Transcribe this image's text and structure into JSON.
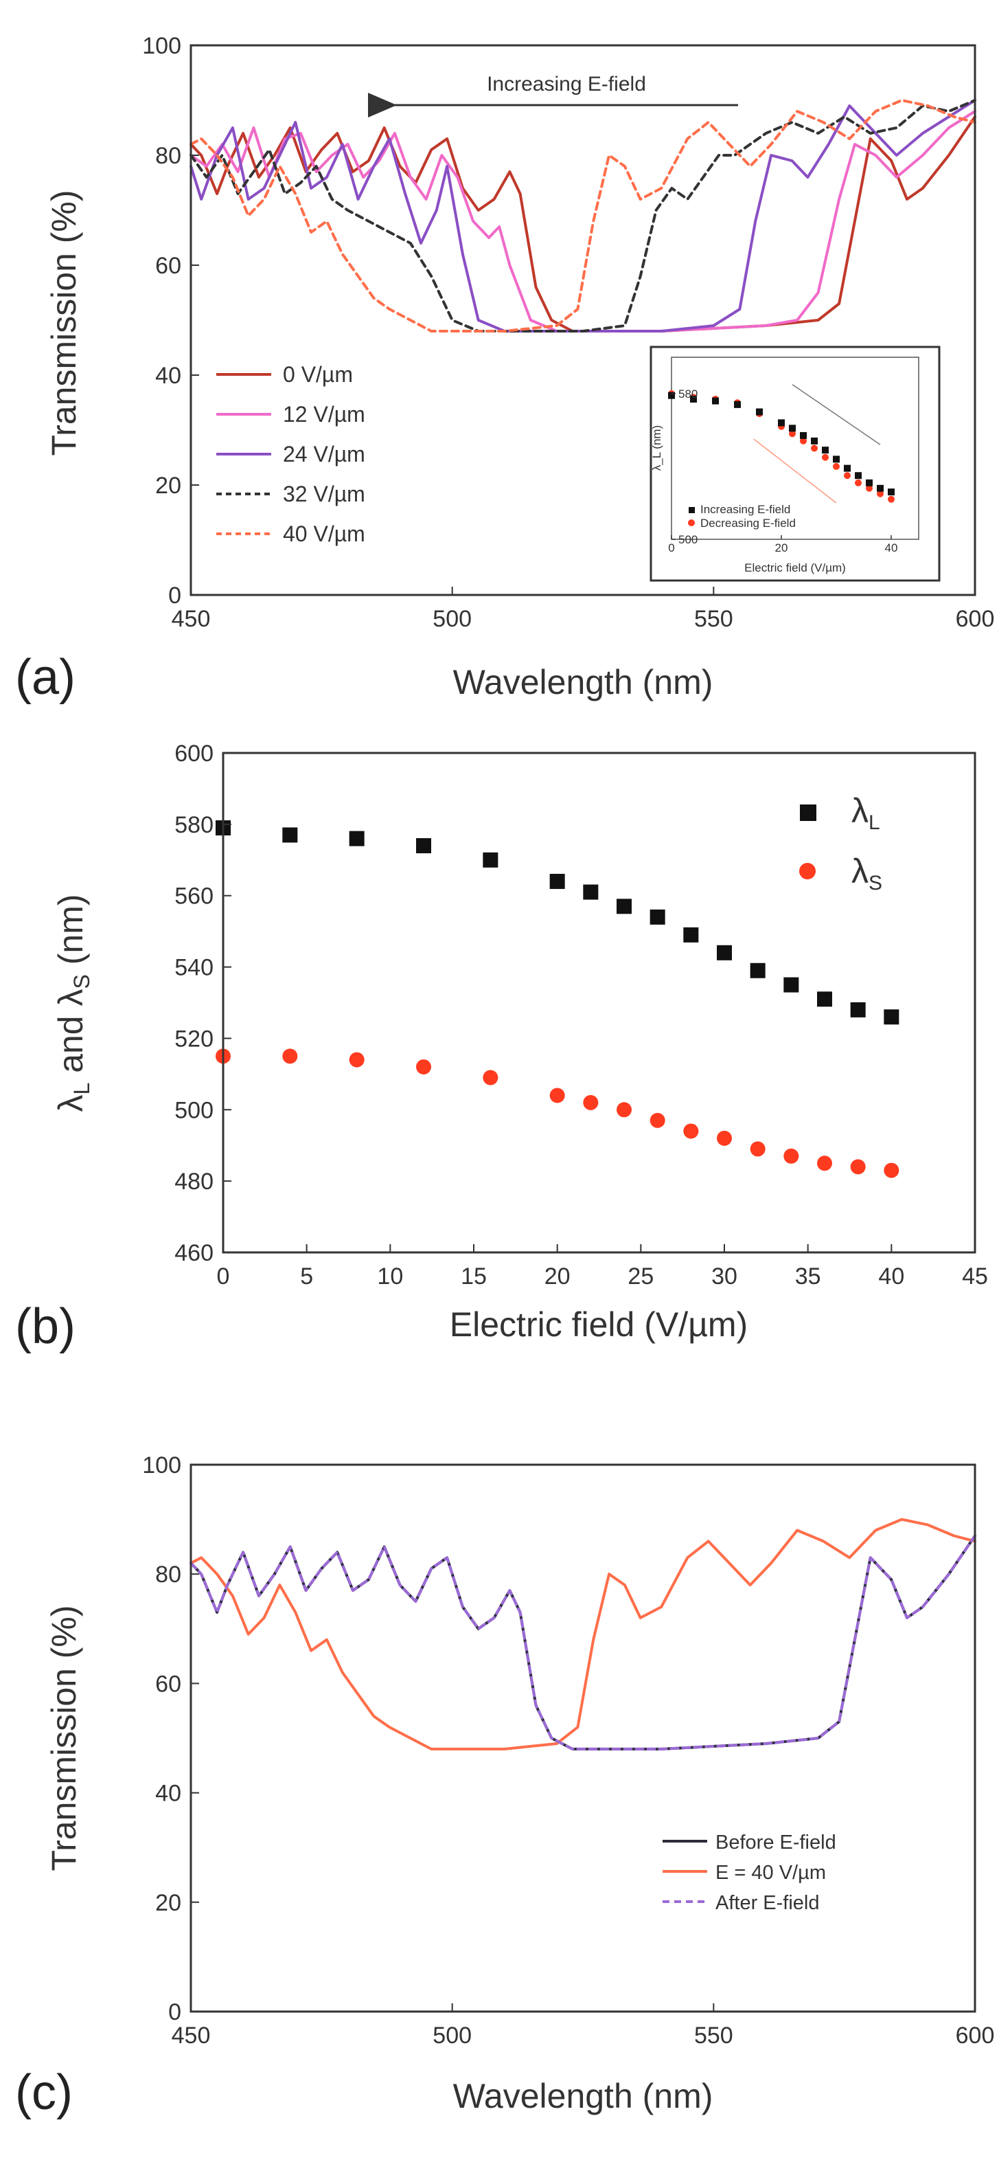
{
  "colors": {
    "c0": "#c0392b",
    "c12": "#f06ac8",
    "c24": "#8a4fc4",
    "c32": "#333333",
    "c40": "#ff6e4a",
    "black": "#111111",
    "red": "#ff3b1f",
    "before": "#2b2b3a",
    "after": "#9b6ad6"
  },
  "panel_labels": [
    "(a)",
    "(b)",
    "(c)"
  ],
  "chart_data": [
    {
      "id": "a",
      "type": "line",
      "xlabel": "Wavelength (nm)",
      "ylabel": "Transmission (%)",
      "xlim": [
        450,
        600
      ],
      "ylim": [
        0,
        100
      ],
      "xticks": [
        "450",
        "500",
        "550",
        "600"
      ],
      "yticks": [
        "0",
        "20",
        "40",
        "60",
        "80",
        "100"
      ],
      "annotation": "Increasing E-field",
      "legend_position": "lower-left",
      "series": [
        {
          "name": "0 V/µm",
          "color": "c0",
          "dash": false,
          "x": [
            450,
            452,
            455,
            457,
            460,
            463,
            466,
            469,
            472,
            475,
            478,
            481,
            484,
            487,
            490,
            493,
            496,
            499,
            502,
            505,
            508,
            511,
            513,
            516,
            519,
            523,
            530,
            540,
            550,
            560,
            570,
            574,
            577,
            580,
            584,
            587,
            590,
            595,
            600
          ],
          "y": [
            82,
            80,
            73,
            78,
            84,
            76,
            80,
            85,
            77,
            81,
            84,
            77,
            79,
            85,
            78,
            75,
            81,
            83,
            74,
            70,
            72,
            77,
            73,
            56,
            50,
            48,
            48,
            48,
            48.5,
            49,
            50,
            53,
            68,
            83,
            79,
            72,
            74,
            80,
            87
          ]
        },
        {
          "name": "12 V/µm",
          "color": "c12",
          "dash": false,
          "x": [
            450,
            453,
            456,
            459,
            462,
            465,
            468,
            471,
            474,
            477,
            480,
            483,
            486,
            489,
            492,
            495,
            498,
            501,
            504,
            507,
            509,
            511,
            515,
            520,
            530,
            540,
            550,
            560,
            566,
            570,
            574,
            577,
            581,
            585,
            590,
            595,
            600
          ],
          "y": [
            80,
            78,
            82,
            77,
            85,
            76,
            83,
            84,
            77,
            80,
            82,
            76,
            79,
            84,
            76,
            72,
            80,
            76,
            68,
            65,
            67,
            60,
            50,
            48,
            48,
            48,
            48.5,
            49,
            50,
            55,
            72,
            82,
            80,
            76,
            80,
            85,
            88
          ]
        },
        {
          "name": "24 V/µm",
          "color": "c24",
          "dash": false,
          "x": [
            450,
            452,
            455,
            458,
            461,
            464,
            467,
            470,
            473,
            476,
            479,
            482,
            485,
            488,
            491,
            494,
            497,
            499,
            502,
            505,
            510,
            520,
            530,
            540,
            550,
            555,
            558,
            561,
            565,
            568,
            572,
            576,
            580,
            585,
            590,
            595,
            600
          ],
          "y": [
            78,
            72,
            80,
            85,
            72,
            74,
            80,
            86,
            74,
            76,
            82,
            72,
            78,
            83,
            73,
            64,
            70,
            78,
            62,
            50,
            48,
            48,
            48,
            48,
            49,
            52,
            68,
            80,
            79,
            76,
            82,
            89,
            85,
            80,
            84,
            87,
            90
          ]
        },
        {
          "name": "32 V/µm",
          "color": "c32",
          "dash": true,
          "x": [
            450,
            453,
            456,
            459,
            462,
            465,
            468,
            471,
            474,
            477,
            480,
            484,
            488,
            492,
            496,
            500,
            505,
            515,
            525,
            533,
            536,
            539,
            542,
            545,
            548,
            551,
            554,
            557,
            560,
            565,
            570,
            575,
            580,
            585,
            590,
            595,
            600
          ],
          "y": [
            80,
            76,
            80,
            73,
            77,
            81,
            73,
            75,
            78,
            72,
            70,
            68,
            66,
            64,
            58,
            50,
            48,
            48,
            48,
            49,
            58,
            70,
            74,
            72,
            76,
            80,
            80,
            82,
            84,
            86,
            84,
            87,
            84,
            85,
            89,
            88,
            90
          ]
        },
        {
          "name": "40 V/µm",
          "color": "c40",
          "dash": true,
          "x": [
            450,
            452,
            455,
            458,
            461,
            464,
            467,
            470,
            473,
            476,
            479,
            482,
            485,
            488,
            492,
            496,
            500,
            505,
            510,
            515,
            520,
            524,
            527,
            530,
            533,
            536,
            540,
            545,
            549,
            553,
            557,
            561,
            566,
            571,
            576,
            581,
            586,
            591,
            596,
            600
          ],
          "y": [
            82,
            83,
            80,
            76,
            69,
            72,
            78,
            73,
            66,
            68,
            62,
            58,
            54,
            52,
            50,
            48,
            48,
            48,
            48,
            48.5,
            49,
            52,
            68,
            80,
            78,
            72,
            74,
            83,
            86,
            82,
            78,
            82,
            88,
            86,
            83,
            88,
            90,
            89,
            87,
            86
          ]
        }
      ],
      "inset": {
        "xlabel": "Electric field (V/µm)",
        "ylabel": "λ_L (nm)",
        "xlim": [
          0,
          45
        ],
        "ylim": [
          500,
          600
        ],
        "xticks": [
          "0",
          "20",
          "40"
        ],
        "yticks": [
          "500",
          "580"
        ],
        "legend": [
          "Increasing E-field",
          "Decreasing E-field"
        ],
        "legend_colors": [
          "black",
          "red"
        ],
        "increasing": {
          "x": [
            0,
            4,
            8,
            12,
            16,
            20,
            22,
            24,
            26,
            28,
            30,
            32,
            34,
            36,
            38,
            40
          ],
          "y": [
            579,
            577,
            576,
            574,
            570,
            564,
            561,
            557,
            554,
            549,
            544,
            539,
            535,
            531,
            528,
            526
          ]
        },
        "decreasing": {
          "x": [
            0,
            4,
            8,
            12,
            16,
            20,
            22,
            24,
            26,
            28,
            30,
            32,
            34,
            36,
            38,
            40
          ],
          "y": [
            580,
            578,
            577,
            575,
            569,
            562,
            558,
            554,
            550,
            545,
            540,
            535,
            531,
            528,
            525,
            522
          ]
        }
      }
    },
    {
      "id": "b",
      "type": "scatter",
      "xlabel": "Electric field (V/µm)",
      "ylabel": "λ_L and λ_S (nm)",
      "xlim": [
        0,
        45
      ],
      "ylim": [
        460,
        600
      ],
      "xticks": [
        "0",
        "5",
        "10",
        "15",
        "20",
        "25",
        "30",
        "35",
        "40",
        "45"
      ],
      "yticks": [
        "460",
        "480",
        "500",
        "520",
        "540",
        "560",
        "580",
        "600"
      ],
      "legend_position": "top-right",
      "series": [
        {
          "name": "λ_L",
          "legend_main": "λ",
          "legend_sub": "L",
          "marker": "square",
          "color": "black",
          "x": [
            0,
            4,
            8,
            12,
            16,
            20,
            22,
            24,
            26,
            28,
            30,
            32,
            34,
            36,
            38,
            40
          ],
          "y": [
            579,
            577,
            576,
            574,
            570,
            564,
            561,
            557,
            554,
            549,
            544,
            539,
            535,
            531,
            528,
            526
          ]
        },
        {
          "name": "λ_S",
          "legend_main": "λ",
          "legend_sub": "S",
          "marker": "circle",
          "color": "red",
          "x": [
            0,
            4,
            8,
            12,
            16,
            20,
            22,
            24,
            26,
            28,
            30,
            32,
            34,
            36,
            38,
            40
          ],
          "y": [
            515,
            515,
            514,
            512,
            509,
            504,
            502,
            500,
            497,
            494,
            492,
            489,
            487,
            485,
            484,
            483
          ]
        }
      ]
    },
    {
      "id": "c",
      "type": "line",
      "xlabel": "Wavelength (nm)",
      "ylabel": "Transmission (%)",
      "xlim": [
        450,
        600
      ],
      "ylim": [
        0,
        100
      ],
      "xticks": [
        "450",
        "500",
        "550",
        "600"
      ],
      "yticks": [
        "0",
        "20",
        "40",
        "60",
        "80",
        "100"
      ],
      "legend_position": "lower-right",
      "series": [
        {
          "name": "Before E-field",
          "color": "before",
          "dash": false,
          "x": [
            450,
            452,
            455,
            457,
            460,
            463,
            466,
            469,
            472,
            475,
            478,
            481,
            484,
            487,
            490,
            493,
            496,
            499,
            502,
            505,
            508,
            511,
            513,
            516,
            519,
            523,
            530,
            540,
            550,
            560,
            570,
            574,
            577,
            580,
            584,
            587,
            590,
            595,
            600
          ],
          "y": [
            82,
            80,
            73,
            78,
            84,
            76,
            80,
            85,
            77,
            81,
            84,
            77,
            79,
            85,
            78,
            75,
            81,
            83,
            74,
            70,
            72,
            77,
            73,
            56,
            50,
            48,
            48,
            48,
            48.5,
            49,
            50,
            53,
            68,
            83,
            79,
            72,
            74,
            80,
            87
          ]
        },
        {
          "name": "E = 40 V/µm",
          "color": "c40",
          "dash": false,
          "x": [
            450,
            452,
            455,
            458,
            461,
            464,
            467,
            470,
            473,
            476,
            479,
            482,
            485,
            488,
            492,
            496,
            500,
            505,
            510,
            515,
            520,
            524,
            527,
            530,
            533,
            536,
            540,
            545,
            549,
            553,
            557,
            561,
            566,
            571,
            576,
            581,
            586,
            591,
            596,
            600
          ],
          "y": [
            82,
            83,
            80,
            76,
            69,
            72,
            78,
            73,
            66,
            68,
            62,
            58,
            54,
            52,
            50,
            48,
            48,
            48,
            48,
            48.5,
            49,
            52,
            68,
            80,
            78,
            72,
            74,
            83,
            86,
            82,
            78,
            82,
            88,
            86,
            83,
            88,
            90,
            89,
            87,
            86
          ]
        },
        {
          "name": "After E-field",
          "color": "after",
          "dash": true,
          "x": [
            450,
            452,
            455,
            457,
            460,
            463,
            466,
            469,
            472,
            475,
            478,
            481,
            484,
            487,
            490,
            493,
            496,
            499,
            502,
            505,
            508,
            511,
            513,
            516,
            519,
            523,
            530,
            540,
            550,
            560,
            570,
            574,
            577,
            580,
            584,
            587,
            590,
            595,
            600
          ],
          "y": [
            82,
            80,
            73,
            78,
            84,
            76,
            80,
            85,
            77,
            81,
            84,
            77,
            79,
            85,
            78,
            75,
            81,
            83,
            74,
            70,
            72,
            77,
            73,
            56,
            50,
            48,
            48,
            48,
            48.5,
            49,
            50,
            53,
            68,
            83,
            79,
            72,
            74,
            80,
            87
          ]
        }
      ]
    }
  ]
}
